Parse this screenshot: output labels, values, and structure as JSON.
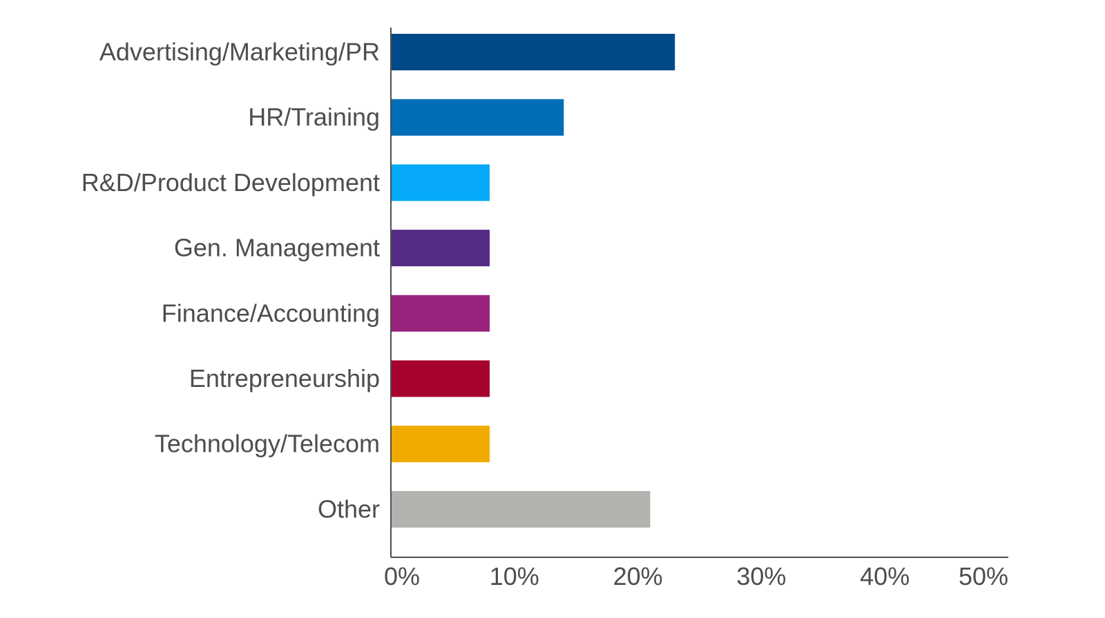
{
  "chart_data": {
    "type": "bar",
    "orientation": "horizontal",
    "title": "",
    "xlabel": "",
    "ylabel": "",
    "categories": [
      "Advertising/Marketing/PR",
      "HR/Training",
      "R&D/Product Development",
      "Gen. Management",
      "Finance/Accounting",
      "Entrepreneurship",
      "Technology/Telecom",
      "Other"
    ],
    "values": [
      23,
      14,
      8,
      8,
      8,
      8,
      8,
      21
    ],
    "colors": [
      "#004b87",
      "#006eb6",
      "#06aaf8",
      "#542c85",
      "#98237c",
      "#a6032f",
      "#f0ab00",
      "#b1b3ae"
    ],
    "xlim": [
      0,
      50
    ],
    "x_ticks": [
      0,
      10,
      20,
      30,
      40,
      50
    ],
    "x_tick_labels": [
      "0%",
      "10%",
      "20%",
      "30%",
      "40%",
      "50%"
    ],
    "grid": false,
    "legend": "none",
    "axis_color": "#4d4d4f",
    "text_color": "#4d4d4f"
  }
}
